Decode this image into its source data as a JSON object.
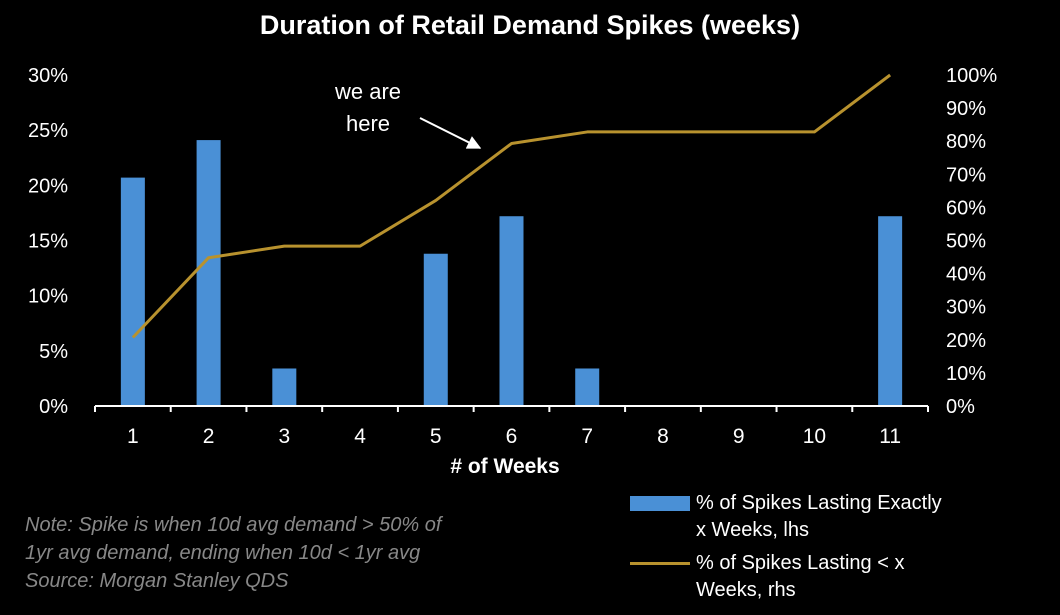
{
  "chart_data": {
    "type": "bar",
    "title": "Duration of Retail Demand Spikes (weeks)",
    "xlabel": "# of Weeks",
    "categories": [
      "1",
      "2",
      "3",
      "4",
      "5",
      "6",
      "7",
      "8",
      "9",
      "10",
      "11"
    ],
    "ylim_left": [
      0,
      30
    ],
    "ylim_right": [
      0,
      100
    ],
    "y_ticks_left": [
      "0%",
      "5%",
      "10%",
      "15%",
      "20%",
      "25%",
      "30%"
    ],
    "y_ticks_right": [
      "0%",
      "10%",
      "20%",
      "30%",
      "40%",
      "50%",
      "60%",
      "70%",
      "80%",
      "90%",
      "100%"
    ],
    "grid": false,
    "legend_position": "bottom-right",
    "series": [
      {
        "name": "% of Spikes Lasting Exactly x Weeks, lhs",
        "name_lines": [
          "% of Spikes Lasting Exactly",
          "x Weeks, lhs"
        ],
        "type": "bar",
        "axis": "left",
        "color": "#4A90D6",
        "values": [
          20.7,
          24.1,
          3.4,
          0,
          13.8,
          17.2,
          3.4,
          0,
          0,
          0,
          17.2
        ]
      },
      {
        "name": "% of Spikes Lasting < x Weeks, rhs",
        "name_lines": [
          "% of Spikes Lasting < x",
          "Weeks, rhs"
        ],
        "type": "line",
        "axis": "right",
        "color": "#B8922E",
        "values": [
          20.7,
          44.8,
          48.3,
          48.3,
          62.1,
          79.3,
          82.8,
          82.8,
          82.8,
          82.8,
          100
        ]
      }
    ],
    "annotation": {
      "lines": [
        "we are",
        "here"
      ],
      "arrow_to_category": "5.5"
    },
    "note_lines": [
      "Note: Spike is when 10d avg demand > 50% of",
      "1yr avg demand, ending when 10d < 1yr avg",
      "Source: Morgan Stanley QDS"
    ]
  }
}
